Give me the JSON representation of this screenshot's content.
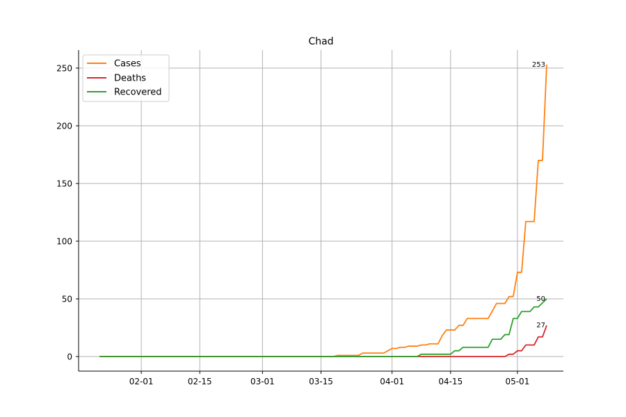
{
  "chart_data": {
    "type": "line",
    "title": "Chad",
    "xlabel": "",
    "ylabel": "",
    "x_start": "2020-01-22",
    "x_end": "2020-05-07",
    "xlim": [
      "2020-01-17",
      "2020-05-12"
    ],
    "ylim": [
      -12.65,
      265.65
    ],
    "x_ticks": [
      {
        "date": "2020-02-01",
        "label": "02-01"
      },
      {
        "date": "2020-02-15",
        "label": "02-15"
      },
      {
        "date": "2020-03-01",
        "label": "03-01"
      },
      {
        "date": "2020-03-15",
        "label": "03-15"
      },
      {
        "date": "2020-04-01",
        "label": "04-01"
      },
      {
        "date": "2020-04-15",
        "label": "04-15"
      },
      {
        "date": "2020-05-01",
        "label": "05-01"
      }
    ],
    "y_ticks": [
      0,
      50,
      100,
      150,
      200,
      250
    ],
    "grid": true,
    "legend_position": "top-left",
    "series": [
      {
        "name": "Cases",
        "color": "#ff7f0e",
        "end_label": "253",
        "points": [
          [
            "2020-01-22",
            0
          ],
          [
            "2020-03-18",
            0
          ],
          [
            "2020-03-19",
            1
          ],
          [
            "2020-03-24",
            1
          ],
          [
            "2020-03-25",
            3
          ],
          [
            "2020-03-30",
            3
          ],
          [
            "2020-03-31",
            5
          ],
          [
            "2020-04-01",
            7
          ],
          [
            "2020-04-02",
            7
          ],
          [
            "2020-04-03",
            8
          ],
          [
            "2020-04-04",
            8
          ],
          [
            "2020-04-05",
            9
          ],
          [
            "2020-04-07",
            9
          ],
          [
            "2020-04-08",
            10
          ],
          [
            "2020-04-09",
            10
          ],
          [
            "2020-04-10",
            11
          ],
          [
            "2020-04-12",
            11
          ],
          [
            "2020-04-13",
            18
          ],
          [
            "2020-04-14",
            23
          ],
          [
            "2020-04-16",
            23
          ],
          [
            "2020-04-17",
            27
          ],
          [
            "2020-04-18",
            27
          ],
          [
            "2020-04-19",
            33
          ],
          [
            "2020-04-24",
            33
          ],
          [
            "2020-04-26",
            46
          ],
          [
            "2020-04-28",
            46
          ],
          [
            "2020-04-29",
            52
          ],
          [
            "2020-04-30",
            52
          ],
          [
            "2020-05-01",
            73
          ],
          [
            "2020-05-02",
            73
          ],
          [
            "2020-05-03",
            117
          ],
          [
            "2020-05-05",
            117
          ],
          [
            "2020-05-06",
            170
          ],
          [
            "2020-05-07",
            170
          ],
          [
            "2020-05-08",
            253
          ]
        ]
      },
      {
        "name": "Deaths",
        "color": "#d62728",
        "end_label": "27",
        "points": [
          [
            "2020-01-22",
            0
          ],
          [
            "2020-04-28",
            0
          ],
          [
            "2020-04-29",
            2
          ],
          [
            "2020-04-30",
            2
          ],
          [
            "2020-05-01",
            5
          ],
          [
            "2020-05-02",
            5
          ],
          [
            "2020-05-03",
            10
          ],
          [
            "2020-05-05",
            10
          ],
          [
            "2020-05-06",
            17
          ],
          [
            "2020-05-07",
            17
          ],
          [
            "2020-05-08",
            27
          ]
        ]
      },
      {
        "name": "Recovered",
        "color": "#2ca02c",
        "end_label": "50",
        "points": [
          [
            "2020-01-22",
            0
          ],
          [
            "2020-04-07",
            0
          ],
          [
            "2020-04-08",
            2
          ],
          [
            "2020-04-15",
            2
          ],
          [
            "2020-04-16",
            5
          ],
          [
            "2020-04-17",
            5
          ],
          [
            "2020-04-18",
            8
          ],
          [
            "2020-04-24",
            8
          ],
          [
            "2020-04-25",
            15
          ],
          [
            "2020-04-27",
            15
          ],
          [
            "2020-04-28",
            19
          ],
          [
            "2020-04-29",
            19
          ],
          [
            "2020-04-30",
            33
          ],
          [
            "2020-05-01",
            33
          ],
          [
            "2020-05-02",
            39
          ],
          [
            "2020-05-04",
            39
          ],
          [
            "2020-05-05",
            43
          ],
          [
            "2020-05-06",
            43
          ],
          [
            "2020-05-08",
            50
          ]
        ]
      }
    ]
  }
}
